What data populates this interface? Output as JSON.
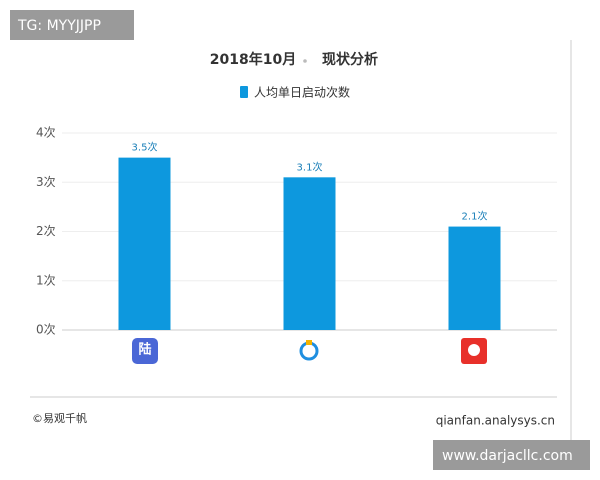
{
  "chart_data": {
    "type": "bar",
    "title": "2018年10月",
    "subtitle": "现状分析",
    "legend": "人均单日启动次数",
    "categories": [
      null,
      null,
      null
    ],
    "values": [
      3.5,
      3.1,
      2.1
    ],
    "value_labels": [
      "3.5次",
      "3.1次",
      "2.1次"
    ],
    "color": "#0d98de",
    "ylim": [
      0,
      4
    ],
    "yticks": [
      {
        "value": 0,
        "label": "0次"
      },
      {
        "value": 1,
        "label": "1次"
      },
      {
        "value": 2,
        "label": "2次"
      },
      {
        "value": 3,
        "label": "3次"
      },
      {
        "value": 4,
        "label": "4次"
      }
    ],
    "grid": true,
    "source": "©易观千帆",
    "site": "qianfan.analysys.cn"
  },
  "watermarks": [
    "TG: MYYJJPP",
    "www.darjacllc.com"
  ]
}
